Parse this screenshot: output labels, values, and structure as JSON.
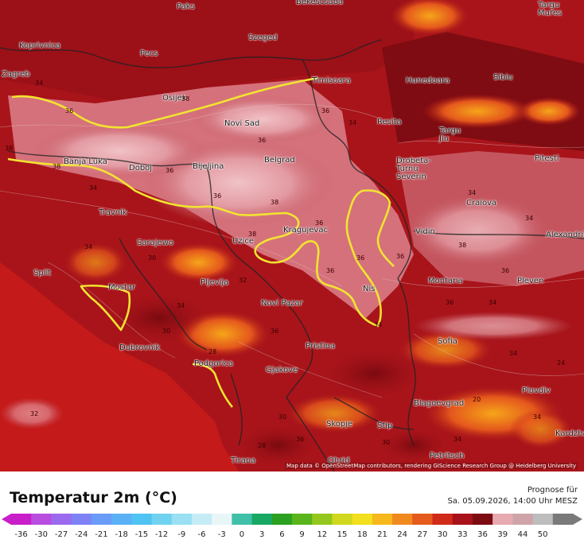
{
  "title": "Temperatur 2m (°C)",
  "forecast_label": "Prognose für",
  "forecast_date": "Sa. 05.09.2026, 14:00 Uhr MESZ",
  "attribution": "Map data © OpenStreetMap contributors, rendering GIScience Research Group @ Heidelberg University",
  "scale_ticks": [
    "-36",
    "-30",
    "-27",
    "-24",
    "-21",
    "-18",
    "-15",
    "-12",
    "-9",
    "-6",
    "-3",
    "0",
    "3",
    "6",
    "9",
    "12",
    "15",
    "18",
    "21",
    "24",
    "27",
    "30",
    "33",
    "36",
    "39",
    "44",
    "50"
  ],
  "scale_colors": [
    "#c81fc8",
    "#b84de0",
    "#9b6aee",
    "#7e82f6",
    "#6a9bf8",
    "#5bb0f6",
    "#4fc3f2",
    "#6fd3ef",
    "#9ae0f2",
    "#c5ecf6",
    "#e9f6f8",
    "#40c0a8",
    "#18a864",
    "#2ca020",
    "#5ab41c",
    "#94c71c",
    "#cfd81e",
    "#f2df1e",
    "#f7b81d",
    "#f08a1e",
    "#e45b1c",
    "#d02a1a",
    "#a8121a",
    "#7c0b12",
    "#e7aab0",
    "#cfa4a8",
    "#bdbdbd",
    "#7a7a7a"
  ],
  "cities": [
    {
      "name": "Paks"
    },
    {
      "name": "Bekescsaba"
    },
    {
      "name": "Targu Mures"
    },
    {
      "name": "Koprivnica"
    },
    {
      "name": "Szeged"
    },
    {
      "name": "Pecs"
    },
    {
      "name": "Zagreb"
    },
    {
      "name": "Timisoara"
    },
    {
      "name": "Hunedoara"
    },
    {
      "name": "Sibiu"
    },
    {
      "name": "Osijek"
    },
    {
      "name": "Novi Sad"
    },
    {
      "name": "Resita"
    },
    {
      "name": "Targu Jiu"
    },
    {
      "name": "Pitesti"
    },
    {
      "name": "Banja Luka"
    },
    {
      "name": "Doboj"
    },
    {
      "name": "Bijeljina"
    },
    {
      "name": "Belgrad"
    },
    {
      "name": "Drobeta-Turnu Severin"
    },
    {
      "name": "Craiova"
    },
    {
      "name": "Travnik"
    },
    {
      "name": "Kragujevac"
    },
    {
      "name": "Vidin"
    },
    {
      "name": "Alexandria"
    },
    {
      "name": "Sarajewo"
    },
    {
      "name": "Uzice"
    },
    {
      "name": "Split"
    },
    {
      "name": "Mostar"
    },
    {
      "name": "Pljevlja"
    },
    {
      "name": "Montana"
    },
    {
      "name": "Pleven"
    },
    {
      "name": "Nis"
    },
    {
      "name": "Novi Pazar"
    },
    {
      "name": "Dubrovnik"
    },
    {
      "name": "Pristina"
    },
    {
      "name": "Sofia"
    },
    {
      "name": "Podgorica"
    },
    {
      "name": "Gjakove"
    },
    {
      "name": "Plovdiv"
    },
    {
      "name": "Blagoevgrad"
    },
    {
      "name": "Skopje"
    },
    {
      "name": "Stip"
    },
    {
      "name": "Kardzhali"
    },
    {
      "name": "Tirana"
    },
    {
      "name": "Ohrid"
    },
    {
      "name": "Petritsch"
    }
  ],
  "value_labels": [
    "34",
    "36",
    "38",
    "36",
    "38",
    "36",
    "34",
    "38",
    "36",
    "34",
    "36",
    "38",
    "34",
    "36",
    "34",
    "36",
    "38",
    "30",
    "34",
    "36",
    "36",
    "38",
    "36",
    "34",
    "32",
    "34",
    "30",
    "36",
    "34",
    "36",
    "28",
    "24",
    "34",
    "30",
    "36",
    "34",
    "30",
    "28",
    "20",
    "32",
    "34"
  ]
}
